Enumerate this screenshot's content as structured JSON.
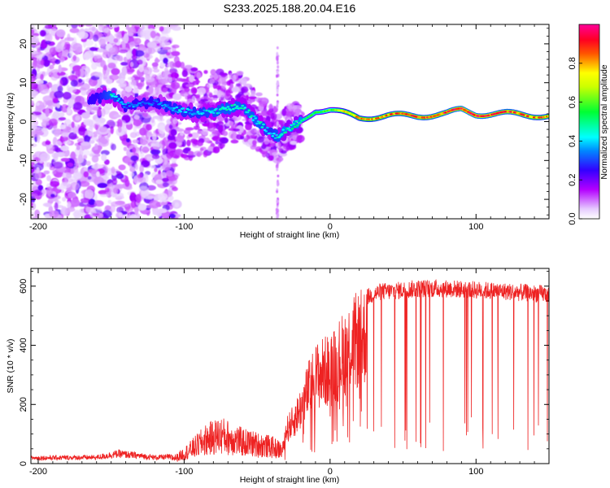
{
  "title": "S233.2025.188.20.04.E16",
  "chart_data": [
    {
      "type": "heatmap",
      "xlabel": "Height of straight line (km)",
      "ylabel": "Frequency (Hz)",
      "xlim": [
        -205,
        150
      ],
      "ylim": [
        -25,
        25
      ],
      "xticks": [
        -200,
        -100,
        0,
        100
      ],
      "yticks": [
        -20,
        -10,
        0,
        10,
        20
      ],
      "colorbar": {
        "label": "Normalized spectral amplitude",
        "range": [
          0,
          1
        ],
        "ticks": [
          "0.0",
          "0.2",
          "0.4",
          "0.6",
          "0.8"
        ],
        "colormap": [
          "#ffffff",
          "#b400ff",
          "#0000ff",
          "#00ffff",
          "#00ff00",
          "#ffff00",
          "#ff0000",
          "#ff00aa"
        ]
      },
      "ridge": {
        "x": [
          -160,
          -150,
          -140,
          -120,
          -105,
          -90,
          -75,
          -60,
          -50,
          -40,
          -35,
          -30,
          -20,
          -10,
          0,
          10,
          20,
          40,
          60,
          80,
          90,
          100,
          120,
          150
        ],
        "y": [
          6,
          7,
          4,
          5,
          3,
          2,
          3,
          4,
          0,
          -3,
          -4,
          -2,
          0,
          3,
          3,
          2,
          1,
          1.5,
          1.5,
          2,
          3,
          2,
          2,
          1.5
        ],
        "amplitude": [
          0.35,
          0.45,
          0.35,
          0.35,
          0.4,
          0.4,
          0.45,
          0.45,
          0.45,
          0.4,
          0.45,
          0.5,
          0.5,
          0.55,
          0.6,
          0.75,
          0.8,
          0.85,
          0.9,
          0.9,
          0.95,
          0.95,
          0.9,
          0.85
        ]
      },
      "noise_region_x": [
        -205,
        -110
      ]
    },
    {
      "type": "line",
      "xlabel": "Height of straight line (km)",
      "ylabel": "SNR (10 * v/v)",
      "xlim": [
        -205,
        150
      ],
      "ylim": [
        0,
        660
      ],
      "xticks": [
        -200,
        -100,
        0,
        100
      ],
      "yticks": [
        0,
        200,
        400,
        600
      ],
      "color": "#ee2222",
      "envelope": {
        "x": [
          -205,
          -160,
          -145,
          -120,
          -105,
          -95,
          -85,
          -75,
          -60,
          -50,
          -40,
          -33,
          -30,
          -25,
          -20,
          -15,
          -10,
          -5,
          0,
          5,
          10,
          15,
          20,
          25,
          30,
          35,
          40,
          60,
          80,
          100,
          120,
          150
        ],
        "y": [
          20,
          22,
          35,
          22,
          25,
          60,
          100,
          120,
          90,
          80,
          70,
          55,
          150,
          190,
          250,
          330,
          390,
          410,
          420,
          460,
          500,
          540,
          560,
          580,
          590,
          600,
          600,
          610,
          610,
          605,
          600,
          590
        ]
      }
    }
  ]
}
